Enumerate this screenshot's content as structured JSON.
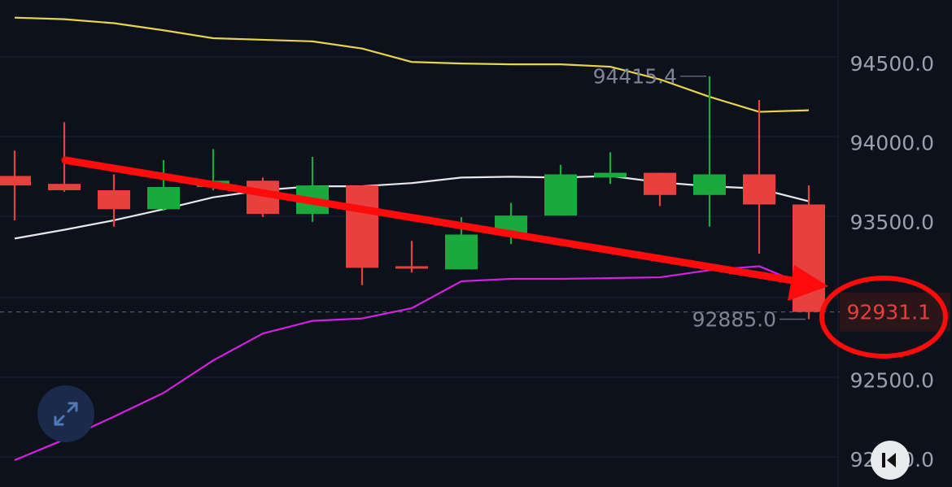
{
  "chart_data": {
    "type": "candlestick",
    "price_axis": {
      "labels": [
        "94500.0",
        "94000.0",
        "93500.0",
        "92500.0",
        "92000.0"
      ],
      "ylim": [
        91995,
        94850
      ]
    },
    "candles": [
      {
        "o": 93790,
        "h": 93950,
        "l": 93510,
        "c": 93730
      },
      {
        "o": 93740,
        "h": 94130,
        "l": 93690,
        "c": 93700
      },
      {
        "o": 93700,
        "h": 93800,
        "l": 93470,
        "c": 93580
      },
      {
        "o": 93580,
        "h": 93890,
        "l": 93570,
        "c": 93720
      },
      {
        "o": 93720,
        "h": 93960,
        "l": 93700,
        "c": 93760
      },
      {
        "o": 93760,
        "h": 93780,
        "l": 93530,
        "c": 93550
      },
      {
        "o": 93550,
        "h": 93910,
        "l": 93500,
        "c": 93730
      },
      {
        "o": 93730,
        "h": 93730,
        "l": 93100,
        "c": 93210
      },
      {
        "o": 93220,
        "h": 93380,
        "l": 93180,
        "c": 93210
      },
      {
        "o": 93200,
        "h": 93530,
        "l": 93200,
        "c": 93420
      },
      {
        "o": 93420,
        "h": 93620,
        "l": 93360,
        "c": 93540
      },
      {
        "o": 93540,
        "h": 93860,
        "l": 93540,
        "c": 93800
      },
      {
        "o": 93780,
        "h": 93940,
        "l": 93740,
        "c": 93810
      },
      {
        "o": 93810,
        "h": 93810,
        "l": 93600,
        "c": 93670
      },
      {
        "o": 93670,
        "h": 94420,
        "l": 93470,
        "c": 93800
      },
      {
        "o": 93800,
        "h": 94270,
        "l": 93300,
        "c": 93610
      },
      {
        "o": 93610,
        "h": 93730,
        "l": 92885,
        "c": 92931.1
      }
    ],
    "series": [
      {
        "color": "#e8d44d",
        "values": [
          94790,
          94780,
          94755,
          94710,
          94660,
          94650,
          94640,
          94595,
          94510,
          94500,
          94495,
          94495,
          94480,
          94400,
          94290,
          94195,
          94205
        ]
      },
      {
        "color": "#e8e8ea",
        "values": [
          93395,
          93450,
          93510,
          93580,
          93655,
          93700,
          93725,
          93725,
          93745,
          93780,
          93785,
          93780,
          93790,
          93750,
          93725,
          93710,
          93630
        ]
      },
      {
        "color": "#d321e0",
        "values": [
          91995,
          92125,
          92270,
          92420,
          92625,
          92795,
          92875,
          92890,
          92955,
          93125,
          93140,
          93140,
          93145,
          93150,
          93195,
          93220,
          93090
        ]
      }
    ],
    "high_label": "94415.4",
    "low_label": "92885.0",
    "last_price": "92931.1"
  },
  "colors": {
    "up": "#19a93c",
    "down": "#e8403f",
    "annotation": "#ff0b0b"
  },
  "controls": {
    "expand_icon": "expand-arrows-icon",
    "scroll_icon": "skip-back-icon"
  }
}
